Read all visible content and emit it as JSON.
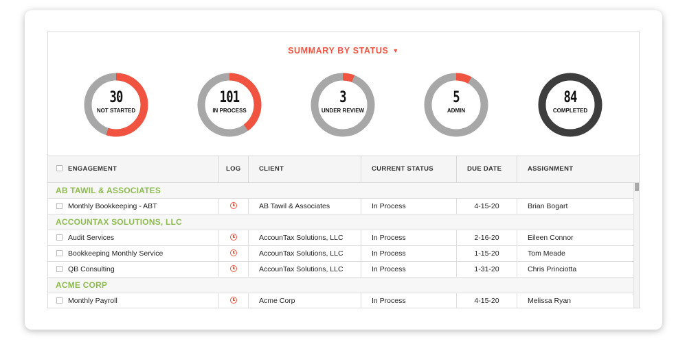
{
  "summary": {
    "title": "SUMMARY BY STATUS",
    "colors": {
      "accent": "#f05340",
      "track": "#a7a7a7",
      "completed": "#3d3d3d",
      "group": "#8dbb4e"
    },
    "items": [
      {
        "count": "30",
        "label": "NOT STARTED",
        "fraction": 0.55
      },
      {
        "count": "101",
        "label": "IN PROCESS",
        "fraction": 0.4
      },
      {
        "count": "3",
        "label": "UNDER REVIEW",
        "fraction": 0.06
      },
      {
        "count": "5",
        "label": "ADMIN",
        "fraction": 0.08
      },
      {
        "count": "84",
        "label": "COMPLETED",
        "fraction": 0.0
      }
    ]
  },
  "table": {
    "columns": {
      "engagement": "ENGAGEMENT",
      "log": "LOG",
      "client": "CLIENT",
      "status": "CURRENT STATUS",
      "due": "DUE DATE",
      "assignment": "ASSIGNMENT"
    },
    "groups": [
      {
        "name": "AB TAWIL & ASSOCIATES",
        "rows": [
          {
            "engagement": "Monthly Bookkeeping - ABT",
            "client": "AB Tawil & Associates",
            "status": "In Process",
            "due": "4-15-20",
            "assignment": "Brian Bogart"
          }
        ]
      },
      {
        "name": "ACCOUNTAX SOLUTIONS, LLC",
        "rows": [
          {
            "engagement": "Audit Services",
            "client": "AccounTax Solutions, LLC",
            "status": "In Process",
            "due": "2-16-20",
            "assignment": "Eileen Connor"
          },
          {
            "engagement": "Bookkeeping Monthly Service",
            "client": "AccounTax Solutions, LLC",
            "status": "In Process",
            "due": "1-15-20",
            "assignment": "Tom Meade"
          },
          {
            "engagement": "QB Consulting",
            "client": "AccounTax Solutions, LLC",
            "status": "In Process",
            "due": "1-31-20",
            "assignment": "Chris Princiotta"
          }
        ]
      },
      {
        "name": "ACME CORP",
        "rows": [
          {
            "engagement": "Monthly Payroll",
            "client": "Acme Corp",
            "status": "In Process",
            "due": "4-15-20",
            "assignment": "Melissa Ryan"
          }
        ]
      }
    ]
  }
}
